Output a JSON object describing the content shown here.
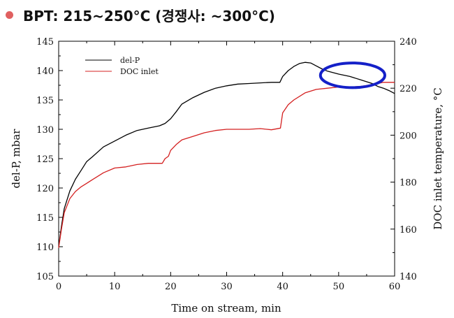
{
  "header": {
    "bullet_color": "#e06060",
    "text": "BPT: 215~250°C (경쟁사: ~300°C)"
  },
  "chart_data": {
    "type": "line",
    "xlabel": "Time on stream, min",
    "ylabel": "del-P, mbar",
    "y2label": "DOC inlet temperature, °C",
    "xlim": [
      0,
      60
    ],
    "ylim": [
      105,
      145
    ],
    "y2lim": [
      140,
      240
    ],
    "xticks": [
      0,
      10,
      20,
      30,
      40,
      50,
      60
    ],
    "yticks": [
      105,
      110,
      115,
      120,
      125,
      130,
      135,
      140,
      145
    ],
    "y2ticks": [
      140,
      160,
      180,
      200,
      220,
      240
    ],
    "legend_position": "top-left",
    "grid": false,
    "series": [
      {
        "name": "del-P",
        "axis": "left",
        "color": "#000000",
        "x": [
          0,
          0.5,
          1,
          2,
          3,
          4,
          5,
          6,
          8,
          10,
          12,
          14,
          16,
          18,
          19,
          20,
          21,
          22,
          24,
          26,
          28,
          30,
          32,
          34,
          36,
          38,
          39.5,
          40,
          41,
          42,
          43,
          44,
          45,
          46,
          47,
          48,
          50,
          52,
          54,
          56,
          57,
          58,
          59,
          60
        ],
        "y": [
          110,
          113.5,
          116.5,
          119.5,
          121.5,
          123,
          124.5,
          125.3,
          127,
          128,
          129,
          129.8,
          130.2,
          130.6,
          131,
          131.8,
          133,
          134.3,
          135.4,
          136.3,
          137,
          137.4,
          137.7,
          137.8,
          137.9,
          138,
          138,
          139,
          140,
          140.7,
          141.2,
          141.4,
          141.3,
          140.8,
          140.3,
          139.9,
          139.4,
          139,
          138.4,
          137.8,
          137.3,
          137,
          136.6,
          136.1
        ]
      },
      {
        "name": "DOC inlet",
        "axis": "right",
        "color": "#d42020",
        "x": [
          0,
          0.5,
          1,
          2,
          3,
          4,
          5,
          6,
          8,
          10,
          12,
          14,
          16,
          18.5,
          19,
          19.6,
          20,
          21,
          22,
          24,
          26,
          28,
          30,
          32,
          34,
          36,
          38,
          39.6,
          40,
          41,
          42,
          44,
          46,
          48,
          50,
          52,
          54,
          56,
          58,
          60
        ],
        "y": [
          152,
          160,
          167,
          173,
          176,
          178,
          179.5,
          181,
          184,
          186,
          186.5,
          187.5,
          188,
          188,
          190,
          191,
          193.5,
          196,
          198,
          199.5,
          201,
          202,
          202.5,
          202.5,
          202.5,
          202.8,
          202.3,
          203,
          209.5,
          213,
          215,
          218,
          219.5,
          220,
          220.5,
          220.5,
          220.8,
          221.5,
          222.5,
          222.5
        ]
      }
    ],
    "annotation": {
      "shape": "ellipse",
      "color": "#1420c8",
      "x_center": 52.5,
      "y_center": 139.2,
      "x_width": 11.5,
      "y_height": 4.2
    }
  }
}
